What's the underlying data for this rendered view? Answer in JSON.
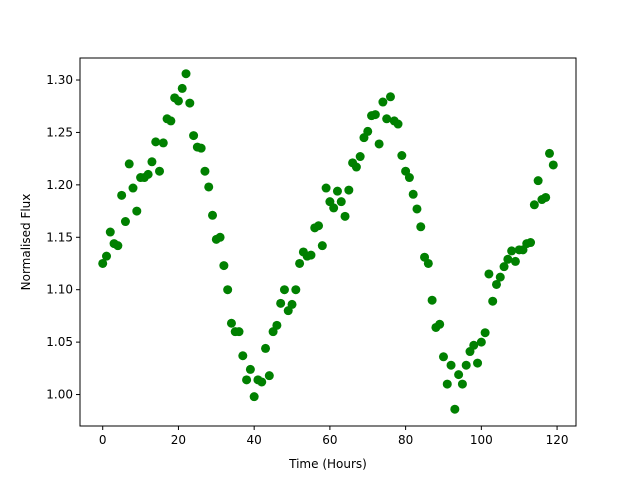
{
  "chart_data": {
    "type": "scatter",
    "x_label": "Time (Hours)",
    "y_label": "Normalised Flux",
    "color": "#008000",
    "xlim": [
      -6,
      125
    ],
    "ylim": [
      0.97,
      1.321
    ],
    "xticks": [
      0,
      20,
      40,
      60,
      80,
      100,
      120
    ],
    "yticks": [
      {
        "value": 1.0,
        "label": "1.00"
      },
      {
        "value": 1.05,
        "label": "1.05"
      },
      {
        "value": 1.1,
        "label": "1.10"
      },
      {
        "value": 1.15,
        "label": "1.15"
      },
      {
        "value": 1.2,
        "label": "1.20"
      },
      {
        "value": 1.25,
        "label": "1.25"
      },
      {
        "value": 1.3,
        "label": "1.30"
      }
    ],
    "x": [
      0,
      1,
      2,
      3,
      4,
      5,
      6,
      7,
      8,
      9,
      10,
      11,
      12,
      13,
      14,
      15,
      16,
      17,
      18,
      19,
      20,
      21,
      22,
      23,
      24,
      25,
      26,
      27,
      28,
      29,
      30,
      31,
      32,
      33,
      34,
      35,
      36,
      37,
      38,
      39,
      40,
      41,
      42,
      43,
      44,
      45,
      46,
      47,
      48,
      49,
      50,
      51,
      52,
      53,
      54,
      55,
      56,
      57,
      58,
      59,
      60,
      61,
      62,
      63,
      64,
      65,
      66,
      67,
      68,
      69,
      70,
      71,
      72,
      73,
      74,
      75,
      76,
      77,
      78,
      79,
      80,
      81,
      82,
      83,
      84,
      85,
      86,
      87,
      88,
      89,
      90,
      91,
      92,
      93,
      94,
      95,
      96,
      97,
      98,
      99,
      100,
      101,
      102,
      103,
      104,
      105,
      106,
      107,
      108,
      109,
      110,
      111,
      112,
      113,
      114,
      115,
      116,
      117,
      118,
      119
    ],
    "values": [
      1.125,
      1.132,
      1.155,
      1.144,
      1.142,
      1.19,
      1.165,
      1.22,
      1.197,
      1.175,
      1.207,
      1.207,
      1.21,
      1.222,
      1.241,
      1.213,
      1.24,
      1.263,
      1.261,
      1.283,
      1.28,
      1.292,
      1.306,
      1.278,
      1.247,
      1.236,
      1.235,
      1.213,
      1.198,
      1.171,
      1.148,
      1.15,
      1.123,
      1.1,
      1.068,
      1.06,
      1.06,
      1.037,
      1.014,
      1.024,
      0.998,
      1.014,
      1.012,
      1.044,
      1.018,
      1.06,
      1.066,
      1.087,
      1.1,
      1.08,
      1.086,
      1.1,
      1.125,
      1.136,
      1.132,
      1.133,
      1.159,
      1.161,
      1.142,
      1.197,
      1.184,
      1.178,
      1.194,
      1.184,
      1.17,
      1.195,
      1.221,
      1.217,
      1.227,
      1.245,
      1.251,
      1.266,
      1.267,
      1.239,
      1.279,
      1.263,
      1.284,
      1.261,
      1.258,
      1.228,
      1.213,
      1.207,
      1.191,
      1.177,
      1.16,
      1.131,
      1.125,
      1.09,
      1.064,
      1.067,
      1.036,
      1.01,
      1.028,
      0.986,
      1.019,
      1.01,
      1.028,
      1.041,
      1.047,
      1.03,
      1.05,
      1.059,
      1.115,
      1.089,
      1.105,
      1.112,
      1.122,
      1.129,
      1.137,
      1.127,
      1.138,
      1.138,
      1.144,
      1.145,
      1.181,
      1.204,
      1.186,
      1.188,
      1.23,
      1.219
    ]
  }
}
